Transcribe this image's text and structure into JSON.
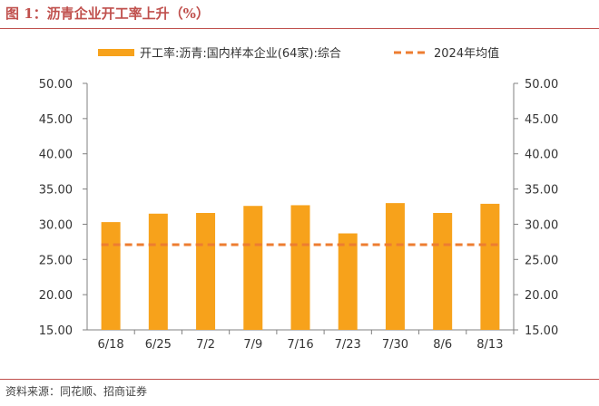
{
  "figure_title": "图 1：沥青企业开工率上升（%）",
  "source_note": "资料来源：同花顺、招商证券",
  "colors": {
    "bar": "#f7a21b",
    "avg_line": "#ed7d31",
    "title": "#c0504d",
    "axis": "#808080"
  },
  "chart_data": {
    "type": "bar",
    "categories": [
      "6/18",
      "6/25",
      "7/2",
      "7/9",
      "7/16",
      "7/23",
      "7/30",
      "8/6",
      "8/13"
    ],
    "series": [
      {
        "name": "开工率:沥青:国内样本企业(64家):综合",
        "values": [
          30.3,
          31.5,
          31.6,
          32.6,
          32.7,
          28.7,
          33.0,
          31.6,
          32.9
        ]
      }
    ],
    "reference_lines": [
      {
        "name": "2024年均值",
        "value": 27.1,
        "style": "dashed"
      }
    ],
    "ylim": [
      15,
      50
    ],
    "y_ticks": [
      "15.00",
      "20.00",
      "25.00",
      "30.00",
      "35.00",
      "40.00",
      "45.00",
      "50.00"
    ],
    "y2_ticks": [
      "15.00",
      "20.00",
      "25.00",
      "30.00",
      "35.00",
      "40.00",
      "45.00",
      "50.00"
    ],
    "title": "",
    "xlabel": "",
    "ylabel": "",
    "grid": false,
    "legend_position": "top"
  }
}
